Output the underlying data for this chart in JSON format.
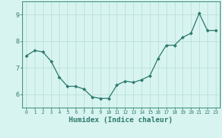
{
  "x": [
    0,
    1,
    2,
    3,
    4,
    5,
    6,
    7,
    8,
    9,
    10,
    11,
    12,
    13,
    14,
    15,
    16,
    17,
    18,
    19,
    20,
    21,
    22,
    23
  ],
  "y": [
    7.45,
    7.65,
    7.6,
    7.25,
    6.65,
    6.3,
    6.3,
    6.2,
    5.9,
    5.85,
    5.85,
    6.35,
    6.5,
    6.45,
    6.55,
    6.7,
    7.35,
    7.85,
    7.85,
    8.15,
    8.3,
    9.05,
    8.4,
    8.4
  ],
  "line_color": "#2d7a6e",
  "marker": "D",
  "marker_size": 2.2,
  "linewidth": 1.0,
  "xlabel": "Humidex (Indice chaleur)",
  "xlabel_fontsize": 7.5,
  "bg_color": "#d8f4f0",
  "grid_color": "#b8ddd8",
  "axis_color": "#3a8a7e",
  "tick_color": "#2d7a6e",
  "ylim": [
    5.5,
    9.5
  ],
  "yticks": [
    6,
    7,
    8,
    9
  ],
  "xlim": [
    -0.5,
    23.5
  ],
  "xtick_fontsize": 5.0,
  "ytick_fontsize": 6.5
}
